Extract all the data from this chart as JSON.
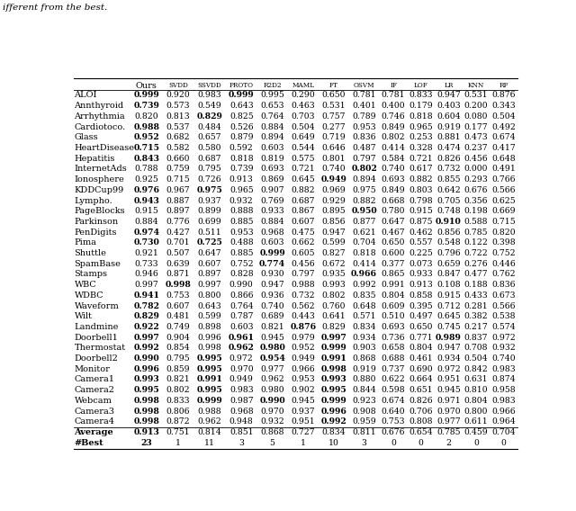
{
  "title_text": "ifferent from the best.",
  "col_headers": [
    "",
    "Ours",
    "SVDD",
    "SSVDD",
    "Proto",
    "R2D2",
    "MAML",
    "FT",
    "OSVM",
    "IF",
    "LOF",
    "LR",
    "KNN",
    "RF"
  ],
  "rows": [
    [
      "ALOI",
      "0.999",
      "0.920",
      "0.983",
      "0.999",
      "0.995",
      "0.290",
      "0.650",
      "0.781",
      "0.781",
      "0.833",
      "0.947",
      "0.531",
      "0.876"
    ],
    [
      "Annthyroid",
      "0.739",
      "0.573",
      "0.549",
      "0.643",
      "0.653",
      "0.463",
      "0.531",
      "0.401",
      "0.400",
      "0.179",
      "0.403",
      "0.200",
      "0.343"
    ],
    [
      "Arrhythmia",
      "0.820",
      "0.813",
      "0.829",
      "0.825",
      "0.764",
      "0.703",
      "0.757",
      "0.789",
      "0.746",
      "0.818",
      "0.604",
      "0.080",
      "0.504"
    ],
    [
      "Cardiotoco.",
      "0.988",
      "0.537",
      "0.484",
      "0.526",
      "0.884",
      "0.504",
      "0.277",
      "0.953",
      "0.849",
      "0.965",
      "0.919",
      "0.177",
      "0.492"
    ],
    [
      "Glass",
      "0.952",
      "0.682",
      "0.657",
      "0.879",
      "0.894",
      "0.649",
      "0.719",
      "0.836",
      "0.802",
      "0.253",
      "0.881",
      "0.473",
      "0.674"
    ],
    [
      "HeartDisease",
      "0.715",
      "0.582",
      "0.580",
      "0.592",
      "0.603",
      "0.544",
      "0.646",
      "0.487",
      "0.414",
      "0.328",
      "0.474",
      "0.237",
      "0.417"
    ],
    [
      "Hepatitis",
      "0.843",
      "0.660",
      "0.687",
      "0.818",
      "0.819",
      "0.575",
      "0.801",
      "0.797",
      "0.584",
      "0.721",
      "0.826",
      "0.456",
      "0.648"
    ],
    [
      "InternetAds",
      "0.788",
      "0.759",
      "0.795",
      "0.739",
      "0.693",
      "0.721",
      "0.740",
      "0.802",
      "0.740",
      "0.617",
      "0.732",
      "0.000",
      "0.491"
    ],
    [
      "Ionosphere",
      "0.925",
      "0.715",
      "0.726",
      "0.913",
      "0.869",
      "0.645",
      "0.949",
      "0.894",
      "0.693",
      "0.882",
      "0.855",
      "0.293",
      "0.766"
    ],
    [
      "KDDCup99",
      "0.976",
      "0.967",
      "0.975",
      "0.965",
      "0.907",
      "0.882",
      "0.969",
      "0.975",
      "0.849",
      "0.803",
      "0.642",
      "0.676",
      "0.566"
    ],
    [
      "Lympho.",
      "0.943",
      "0.887",
      "0.937",
      "0.932",
      "0.769",
      "0.687",
      "0.929",
      "0.882",
      "0.668",
      "0.798",
      "0.705",
      "0.356",
      "0.625"
    ],
    [
      "PageBlocks",
      "0.915",
      "0.897",
      "0.899",
      "0.888",
      "0.933",
      "0.867",
      "0.895",
      "0.950",
      "0.780",
      "0.915",
      "0.748",
      "0.198",
      "0.669"
    ],
    [
      "Parkinson",
      "0.884",
      "0.776",
      "0.699",
      "0.885",
      "0.884",
      "0.607",
      "0.856",
      "0.877",
      "0.647",
      "0.875",
      "0.910",
      "0.588",
      "0.715"
    ],
    [
      "PenDigits",
      "0.974",
      "0.427",
      "0.511",
      "0.953",
      "0.968",
      "0.475",
      "0.947",
      "0.621",
      "0.467",
      "0.462",
      "0.856",
      "0.785",
      "0.820"
    ],
    [
      "Pima",
      "0.730",
      "0.701",
      "0.725",
      "0.488",
      "0.603",
      "0.662",
      "0.599",
      "0.704",
      "0.650",
      "0.557",
      "0.548",
      "0.122",
      "0.398"
    ],
    [
      "Shuttle",
      "0.921",
      "0.507",
      "0.647",
      "0.885",
      "0.999",
      "0.605",
      "0.827",
      "0.818",
      "0.600",
      "0.225",
      "0.796",
      "0.722",
      "0.752"
    ],
    [
      "SpamBase",
      "0.733",
      "0.639",
      "0.607",
      "0.752",
      "0.774",
      "0.456",
      "0.672",
      "0.414",
      "0.377",
      "0.073",
      "0.659",
      "0.276",
      "0.446"
    ],
    [
      "Stamps",
      "0.946",
      "0.871",
      "0.897",
      "0.828",
      "0.930",
      "0.797",
      "0.935",
      "0.966",
      "0.865",
      "0.933",
      "0.847",
      "0.477",
      "0.762"
    ],
    [
      "WBC",
      "0.997",
      "0.998",
      "0.997",
      "0.990",
      "0.947",
      "0.988",
      "0.993",
      "0.992",
      "0.991",
      "0.913",
      "0.108",
      "0.188",
      "0.836"
    ],
    [
      "WDBC",
      "0.941",
      "0.753",
      "0.800",
      "0.866",
      "0.936",
      "0.732",
      "0.802",
      "0.835",
      "0.804",
      "0.858",
      "0.915",
      "0.433",
      "0.673"
    ],
    [
      "Waveform",
      "0.782",
      "0.607",
      "0.643",
      "0.764",
      "0.740",
      "0.562",
      "0.760",
      "0.648",
      "0.609",
      "0.395",
      "0.712",
      "0.281",
      "0.566"
    ],
    [
      "Wilt",
      "0.829",
      "0.481",
      "0.599",
      "0.787",
      "0.689",
      "0.443",
      "0.641",
      "0.571",
      "0.510",
      "0.497",
      "0.645",
      "0.382",
      "0.538"
    ],
    [
      "Landmine",
      "0.922",
      "0.749",
      "0.898",
      "0.603",
      "0.821",
      "0.876",
      "0.829",
      "0.834",
      "0.693",
      "0.650",
      "0.745",
      "0.217",
      "0.574"
    ],
    [
      "Doorbell1",
      "0.997",
      "0.904",
      "0.996",
      "0.961",
      "0.945",
      "0.979",
      "0.997",
      "0.934",
      "0.736",
      "0.771",
      "0.989",
      "0.837",
      "0.972"
    ],
    [
      "Thermostat",
      "0.992",
      "0.854",
      "0.998",
      "0.962",
      "0.980",
      "0.952",
      "0.999",
      "0.903",
      "0.658",
      "0.804",
      "0.947",
      "0.708",
      "0.932"
    ],
    [
      "Doorbell2",
      "0.990",
      "0.795",
      "0.995",
      "0.972",
      "0.954",
      "0.949",
      "0.991",
      "0.868",
      "0.688",
      "0.461",
      "0.934",
      "0.504",
      "0.740"
    ],
    [
      "Monitor",
      "0.996",
      "0.859",
      "0.995",
      "0.970",
      "0.977",
      "0.966",
      "0.998",
      "0.919",
      "0.737",
      "0.690",
      "0.972",
      "0.842",
      "0.983"
    ],
    [
      "Camera1",
      "0.993",
      "0.821",
      "0.991",
      "0.949",
      "0.962",
      "0.953",
      "0.993",
      "0.880",
      "0.622",
      "0.664",
      "0.951",
      "0.631",
      "0.874"
    ],
    [
      "Camera2",
      "0.995",
      "0.802",
      "0.995",
      "0.983",
      "0.980",
      "0.902",
      "0.995",
      "0.844",
      "0.598",
      "0.651",
      "0.945",
      "0.810",
      "0.958"
    ],
    [
      "Webcam",
      "0.998",
      "0.833",
      "0.999",
      "0.987",
      "0.990",
      "0.945",
      "0.999",
      "0.923",
      "0.674",
      "0.826",
      "0.971",
      "0.804",
      "0.983"
    ],
    [
      "Camera3",
      "0.998",
      "0.806",
      "0.988",
      "0.968",
      "0.970",
      "0.937",
      "0.996",
      "0.908",
      "0.640",
      "0.706",
      "0.970",
      "0.800",
      "0.966"
    ],
    [
      "Camera4",
      "0.998",
      "0.872",
      "0.962",
      "0.948",
      "0.932",
      "0.951",
      "0.992",
      "0.959",
      "0.753",
      "0.808",
      "0.977",
      "0.611",
      "0.964"
    ],
    [
      "Average",
      "0.913",
      "0.751",
      "0.814",
      "0.851",
      "0.868",
      "0.727",
      "0.834",
      "0.811",
      "0.676",
      "0.654",
      "0.785",
      "0.459",
      "0.704"
    ],
    [
      "#Best",
      "23",
      "1",
      "11",
      "3",
      "5",
      "1",
      "10",
      "3",
      "0",
      "0",
      "2",
      "0",
      "0"
    ]
  ],
  "bold_cells": {
    "0": [
      1,
      4
    ],
    "1": [
      1
    ],
    "2": [
      3
    ],
    "3": [
      1
    ],
    "4": [
      1
    ],
    "5": [
      1
    ],
    "6": [
      1
    ],
    "7": [
      8
    ],
    "8": [
      7
    ],
    "9": [
      1,
      3
    ],
    "10": [
      1
    ],
    "11": [
      8
    ],
    "12": [
      11
    ],
    "13": [
      1
    ],
    "14": [
      1,
      3
    ],
    "15": [
      5
    ],
    "16": [
      5
    ],
    "17": [
      8
    ],
    "18": [
      2
    ],
    "19": [
      1
    ],
    "20": [
      1
    ],
    "21": [
      1
    ],
    "22": [
      1,
      6
    ],
    "23": [
      1,
      4,
      7,
      11
    ],
    "24": [
      1,
      4,
      5,
      7
    ],
    "25": [
      1,
      3,
      5,
      7
    ],
    "26": [
      1,
      3,
      7
    ],
    "27": [
      1,
      3,
      7
    ],
    "28": [
      1,
      3,
      7
    ],
    "29": [
      1,
      3,
      5,
      7
    ],
    "30": [
      1,
      7
    ],
    "31": [
      1,
      7
    ],
    "32": [
      1
    ],
    "33": [
      1
    ]
  }
}
